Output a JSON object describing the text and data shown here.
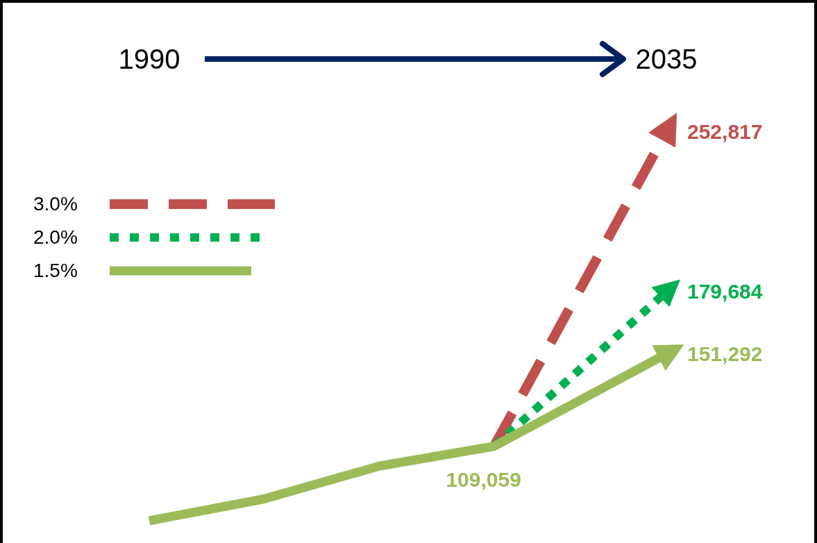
{
  "chart_data": {
    "type": "line",
    "xlim": [
      1990,
      2035
    ],
    "xticks": [
      1990,
      2035
    ],
    "tick_labels": "x",
    "legend": "top left",
    "series": [
      {
        "name": "3.0%",
        "color": "#c0504d",
        "line_style": "dashed",
        "x": [
          2020,
          2035
        ],
        "values": [
          109059,
          252817
        ],
        "value_labels": [
          null,
          "252,817"
        ]
      },
      {
        "name": "2.0%",
        "color": "#00b050",
        "line_style": "dotted",
        "x": [
          2020,
          2035
        ],
        "values": [
          109059,
          179684
        ],
        "value_labels": [
          null,
          "179,684"
        ]
      },
      {
        "name": "1.5%",
        "color": "#9bbb59",
        "line_style": "solid",
        "x": [
          1990,
          2000,
          2010,
          2020,
          2035
        ],
        "values": [
          75000,
          85000,
          100000,
          109059,
          151292
        ],
        "value_labels": [
          null,
          null,
          null,
          "109,059",
          "151,292"
        ]
      }
    ]
  }
}
